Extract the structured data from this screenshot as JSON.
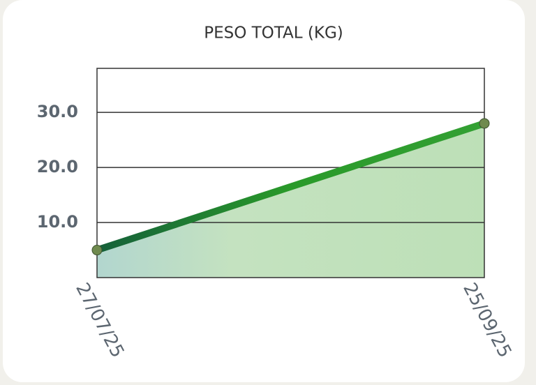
{
  "chart_data": {
    "type": "area",
    "title": "PESO TOTAL (KG)",
    "x": [
      "27/07/25",
      "25/09/25"
    ],
    "values": [
      5,
      28
    ],
    "color": "#2a9a2a",
    "fill_color": "#bfe0b8",
    "ylim": [
      0,
      38
    ],
    "yticks": [
      {
        "value": 10,
        "label": "10.0"
      },
      {
        "value": 20,
        "label": "20.0"
      },
      {
        "value": 30,
        "label": "30.0"
      }
    ],
    "grid": true
  }
}
